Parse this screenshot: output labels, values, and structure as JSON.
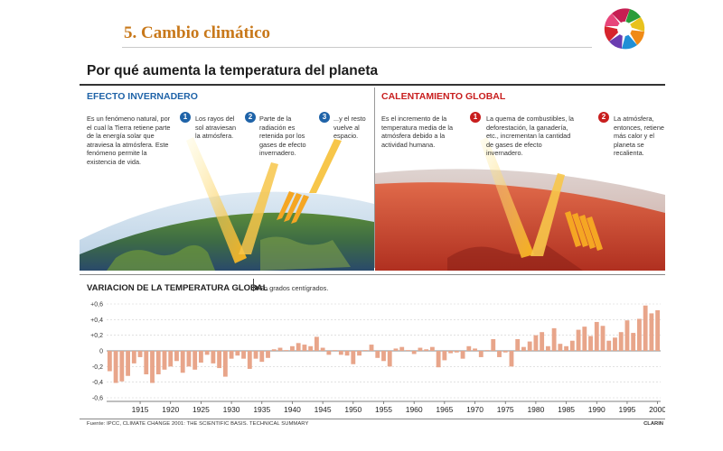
{
  "slide": {
    "title": "5. Cambio climático"
  },
  "colors": {
    "title_orange": "#c8781a",
    "blue_accent": "#1f63a8",
    "red_accent": "#c81e1e",
    "bar_fill": "#e8a58a"
  },
  "infographic": {
    "title": "Por qué aumenta la temperatura del planeta",
    "efecto": {
      "heading": "EFECTO INVERNADERO",
      "description": "Es un fenómeno natural, por el cual la Tierra retiene parte de la energía solar que atraviesa la atmósfera. Este fenómeno permite la existencia de vida.",
      "steps": [
        {
          "number": "1",
          "text": "Los rayos del sol atraviesan la atmósfera."
        },
        {
          "number": "2",
          "text": "Parte de la radiación es retenida por los gases de efecto invernadero."
        },
        {
          "number": "3",
          "text": "...y el resto vuelve al espacio."
        }
      ]
    },
    "calentamiento": {
      "heading": "CALENTAMIENTO GLOBAL",
      "description": "Es el incremento de la temperatura media de la atmósfera debido a la actividad humana.",
      "steps": [
        {
          "number": "1",
          "text": "La quema de combustibles, la deforestación, la ganadería, etc., incrementan la cantidad de gases de efecto invernadero."
        },
        {
          "number": "2",
          "text": "La atmósfera, entonces, retiene más calor y el planeta se recalienta."
        }
      ]
    },
    "source": "Fuente: IPCC, CLIMATE CHANGE 2001: THE SCIENTIFIC BASIS. TECHNICAL SUMMARY",
    "credit": "CLARIN"
  },
  "chart_data": {
    "type": "bar",
    "title": "VARIACION DE LA TEMPERATURA GLOBAL",
    "subtitle": "En grados centígrados.",
    "xlabel": "",
    "ylabel": "",
    "ylim": [
      -0.6,
      0.6
    ],
    "ytick_labels": [
      "+0,6",
      "+0,4",
      "+0,2",
      "0",
      "-0,2",
      "-0,4",
      "-0,6"
    ],
    "ytick_values": [
      0.6,
      0.4,
      0.2,
      0,
      -0.2,
      -0.4,
      -0.6
    ],
    "xtick_labels": [
      "1915",
      "1920",
      "1925",
      "1930",
      "1935",
      "1940",
      "1945",
      "1950",
      "1955",
      "1960",
      "1965",
      "1970",
      "1975",
      "1980",
      "1985",
      "1990",
      "1995",
      "2000"
    ],
    "xtick_values": [
      1915,
      1920,
      1925,
      1930,
      1935,
      1940,
      1945,
      1950,
      1955,
      1960,
      1965,
      1970,
      1975,
      1980,
      1985,
      1990,
      1995,
      2000
    ],
    "years": [
      1910,
      1911,
      1912,
      1913,
      1914,
      1915,
      1916,
      1917,
      1918,
      1919,
      1920,
      1921,
      1922,
      1923,
      1924,
      1925,
      1926,
      1927,
      1928,
      1929,
      1930,
      1931,
      1932,
      1933,
      1934,
      1935,
      1936,
      1937,
      1938,
      1939,
      1940,
      1941,
      1942,
      1943,
      1944,
      1945,
      1946,
      1947,
      1948,
      1949,
      1950,
      1951,
      1952,
      1953,
      1954,
      1955,
      1956,
      1957,
      1958,
      1959,
      1960,
      1961,
      1962,
      1963,
      1964,
      1965,
      1966,
      1967,
      1968,
      1969,
      1970,
      1971,
      1972,
      1973,
      1974,
      1975,
      1976,
      1977,
      1978,
      1979,
      1980,
      1981,
      1982,
      1983,
      1984,
      1985,
      1986,
      1987,
      1988,
      1989,
      1990,
      1991,
      1992,
      1993,
      1994,
      1995,
      1996,
      1997,
      1998,
      1999,
      2000
    ],
    "values": [
      -0.26,
      -0.41,
      -0.39,
      -0.32,
      -0.16,
      -0.08,
      -0.3,
      -0.41,
      -0.3,
      -0.24,
      -0.2,
      -0.13,
      -0.28,
      -0.2,
      -0.24,
      -0.15,
      -0.05,
      -0.16,
      -0.22,
      -0.33,
      -0.1,
      -0.06,
      -0.1,
      -0.23,
      -0.1,
      -0.14,
      -0.09,
      0.02,
      0.04,
      0.01,
      0.06,
      0.1,
      0.08,
      0.06,
      0.18,
      0.04,
      -0.05,
      0.01,
      -0.05,
      -0.06,
      -0.17,
      -0.06,
      0.01,
      0.08,
      -0.09,
      -0.13,
      -0.2,
      0.03,
      0.05,
      0.01,
      -0.04,
      0.04,
      0.02,
      0.05,
      -0.21,
      -0.12,
      -0.03,
      -0.02,
      -0.1,
      0.06,
      0.03,
      -0.08,
      0.01,
      0.15,
      -0.08,
      -0.02,
      -0.2,
      0.15,
      0.05,
      0.12,
      0.2,
      0.24,
      0.06,
      0.29,
      0.09,
      0.06,
      0.13,
      0.27,
      0.31,
      0.19,
      0.37,
      0.32,
      0.13,
      0.17,
      0.24,
      0.39,
      0.23,
      0.41,
      0.58,
      0.48,
      0.52
    ]
  }
}
